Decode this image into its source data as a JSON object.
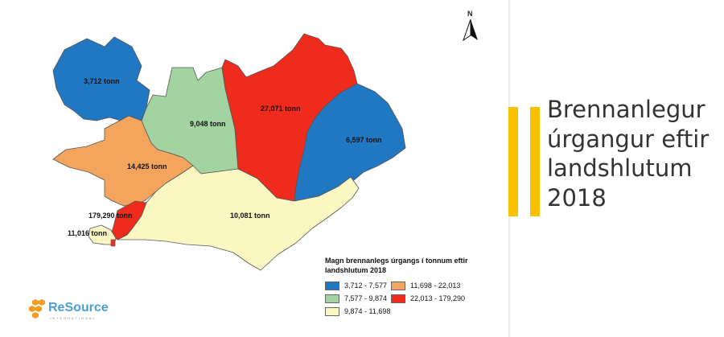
{
  "slide": {
    "title": "Brennanlegur\núrgangur eftir\nlandshlutum\n2018",
    "accent_color": "#f9c100"
  },
  "map": {
    "north_label": "N",
    "regions": [
      {
        "id": "vestfirdir",
        "label": "3,712 tonn",
        "tonnes": 3712,
        "class": "3,712 - 7,577",
        "color": "#1f78c1"
      },
      {
        "id": "nordurland-vestra",
        "label": "9,048 tonn",
        "tonnes": 9048,
        "class": "7,577 - 9,874",
        "color": "#a3d3a0"
      },
      {
        "id": "nordurland-eystra",
        "label": "27,071 tonn",
        "tonnes": 27071,
        "class": "22,013 - 179,290",
        "color": "#ee2b1d"
      },
      {
        "id": "austurland",
        "label": "6,597 tonn",
        "tonnes": 6597,
        "class": "3,712 - 7,577",
        "color": "#1f78c1"
      },
      {
        "id": "vesturland",
        "label": "14,425 tonn",
        "tonnes": 14425,
        "class": "11,698 - 22,013",
        "color": "#f4a55d"
      },
      {
        "id": "hofudborgarsvaedid",
        "label": "179,290 tonn",
        "tonnes": 179290,
        "class": "22,013 - 179,290",
        "color": "#ee2b1d"
      },
      {
        "id": "sudurnes",
        "label": "11,016 tonn",
        "tonnes": 11016,
        "class": "9,874 - 11,698",
        "color": "#fbf7c2"
      },
      {
        "id": "sudurland",
        "label": "10,081 tonn",
        "tonnes": 10081,
        "class": "9,874 - 11,698",
        "color": "#fbf7c2"
      }
    ]
  },
  "legend": {
    "title": "Magn brennanlegs úrgangs í tonnum eftir landshlutum 2018",
    "items": [
      {
        "label": "3,712 - 7,577",
        "color": "#1f78c1"
      },
      {
        "label": "7,577 - 9,874",
        "color": "#a3d3a0"
      },
      {
        "label": "9,874 - 11,698",
        "color": "#fbf7c2"
      },
      {
        "label": "11,698 - 22,013",
        "color": "#f4a55d"
      },
      {
        "label": "22,013 - 179,290",
        "color": "#ee2b1d"
      }
    ]
  },
  "logo": {
    "name": "ReSource",
    "subtitle": "INTERNATIONAL",
    "text_color": "#4a9fd6",
    "mark_color": "#f39c1f"
  }
}
